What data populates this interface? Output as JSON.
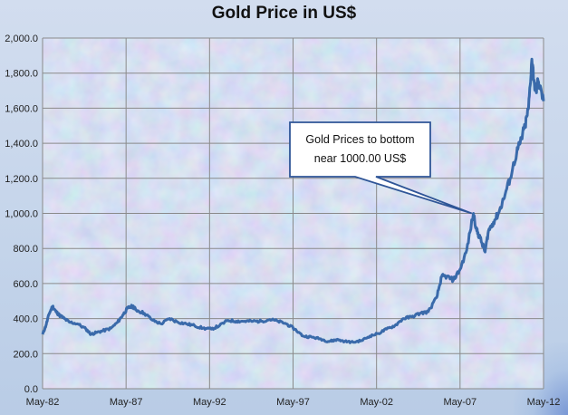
{
  "chart_data": {
    "type": "line",
    "title": "Gold Price in US$",
    "xlabel": "",
    "ylabel": "",
    "ylim": [
      0,
      2000
    ],
    "y_ticks": [
      "0.0",
      "200.0",
      "400.0",
      "600.0",
      "800.0",
      "1,000.0",
      "1,200.0",
      "1,400.0",
      "1,600.0",
      "1,800.0",
      "2,000.0"
    ],
    "x_ticks": [
      "May-82",
      "May-87",
      "May-92",
      "May-97",
      "May-02",
      "May-07",
      "May-12"
    ],
    "grid": true,
    "legend": "none",
    "series": [
      {
        "name": "Gold Price",
        "color": "#3a6aaa",
        "x": [
          1982.4,
          1982.6,
          1982.8,
          1983.0,
          1983.2,
          1983.4,
          1983.7,
          1984.0,
          1984.5,
          1985.0,
          1985.3,
          1985.6,
          1986.0,
          1986.5,
          1986.9,
          1987.2,
          1987.5,
          1987.8,
          1988.0,
          1988.5,
          1989.0,
          1989.5,
          1990.0,
          1990.5,
          1991.0,
          1991.5,
          1992.0,
          1992.5,
          1993.0,
          1993.5,
          1994.0,
          1994.5,
          1995.0,
          1995.5,
          1996.0,
          1996.5,
          1997.0,
          1997.5,
          1998.0,
          1998.5,
          1999.0,
          1999.5,
          1999.8,
          2000.0,
          2000.5,
          2001.0,
          2001.5,
          2002.0,
          2002.5,
          2003.0,
          2003.5,
          2004.0,
          2004.5,
          2005.0,
          2005.5,
          2006.0,
          2006.3,
          2006.6,
          2007.0,
          2007.4,
          2007.8,
          2008.2,
          2008.4,
          2008.6,
          2008.9,
          2009.1,
          2009.4,
          2009.7,
          2010.0,
          2010.4,
          2010.8,
          2011.0,
          2011.3,
          2011.5,
          2011.7,
          2011.9,
          2012.1,
          2012.4
        ],
        "values": [
          310,
          360,
          430,
          470,
          440,
          420,
          400,
          380,
          370,
          340,
          310,
          320,
          330,
          345,
          380,
          420,
          460,
          470,
          450,
          430,
          390,
          370,
          400,
          380,
          370,
          360,
          345,
          340,
          360,
          390,
          385,
          385,
          385,
          385,
          395,
          385,
          370,
          340,
          300,
          295,
          285,
          270,
          275,
          280,
          270,
          265,
          275,
          300,
          315,
          340,
          360,
          400,
          410,
          430,
          440,
          520,
          640,
          640,
          620,
          680,
          790,
          1000,
          900,
          860,
          780,
          900,
          950,
          1000,
          1080,
          1200,
          1350,
          1400,
          1500,
          1600,
          1880,
          1700,
          1750,
          1640
        ]
      }
    ],
    "annotations": [
      {
        "text_lines": [
          "Gold Prices to bottom",
          "near 1000.00 US$"
        ],
        "x": 2008.1,
        "y": 1000
      }
    ]
  }
}
